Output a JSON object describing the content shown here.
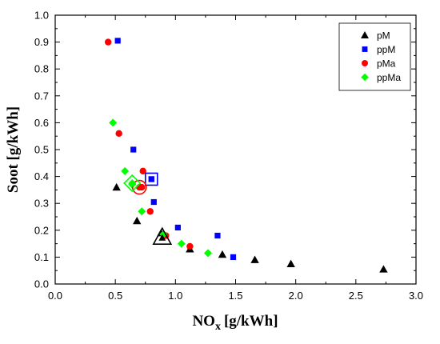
{
  "chart_data": {
    "type": "scatter",
    "title": "",
    "xlabel": "NO",
    "xlabel_sub": "x",
    "xlabel_unit": "[g/kWh]",
    "ylabel": "Soot [g/kWh]",
    "xlim": [
      0.0,
      3.0
    ],
    "ylim": [
      0.0,
      1.0
    ],
    "xticks": [
      "0.0",
      "0.5",
      "1.0",
      "1.5",
      "2.0",
      "2.5",
      "3.0"
    ],
    "yticks": [
      "0.0",
      "0.1",
      "0.2",
      "0.3",
      "0.4",
      "0.5",
      "0.6",
      "0.7",
      "0.8",
      "0.9",
      "1.0"
    ],
    "grid": false,
    "legend_position": "top-right",
    "series": [
      {
        "name": "pM",
        "marker": "triangle",
        "color": "#000000",
        "x": [
          0.51,
          0.68,
          0.88,
          1.12,
          1.39,
          1.66,
          1.96,
          2.73
        ],
        "y": [
          0.36,
          0.235,
          0.19,
          0.13,
          0.11,
          0.09,
          0.075,
          0.055
        ]
      },
      {
        "name": "ppM",
        "marker": "square",
        "color": "#0000ff",
        "x": [
          0.52,
          0.65,
          0.8,
          0.82,
          1.02,
          1.35,
          1.48
        ],
        "y": [
          0.905,
          0.5,
          0.39,
          0.305,
          0.21,
          0.18,
          0.1
        ]
      },
      {
        "name": "pMa",
        "marker": "circle",
        "color": "#ff0000",
        "x": [
          0.44,
          0.53,
          0.72,
          0.73,
          0.79,
          0.92,
          1.12
        ],
        "y": [
          0.9,
          0.56,
          0.36,
          0.42,
          0.27,
          0.18,
          0.14
        ]
      },
      {
        "name": "ppMa",
        "marker": "diamond",
        "color": "#00ff00",
        "x": [
          0.48,
          0.58,
          0.64,
          0.72,
          0.9,
          1.05,
          1.27
        ],
        "y": [
          0.6,
          0.42,
          0.37,
          0.27,
          0.185,
          0.15,
          0.115
        ]
      }
    ],
    "highlights": [
      {
        "series": "pM",
        "x": 0.89,
        "y": 0.175
      },
      {
        "series": "ppM",
        "x": 0.8,
        "y": 0.39
      },
      {
        "series": "pMa",
        "x": 0.7,
        "y": 0.36
      },
      {
        "series": "ppMa",
        "x": 0.64,
        "y": 0.375
      }
    ]
  }
}
